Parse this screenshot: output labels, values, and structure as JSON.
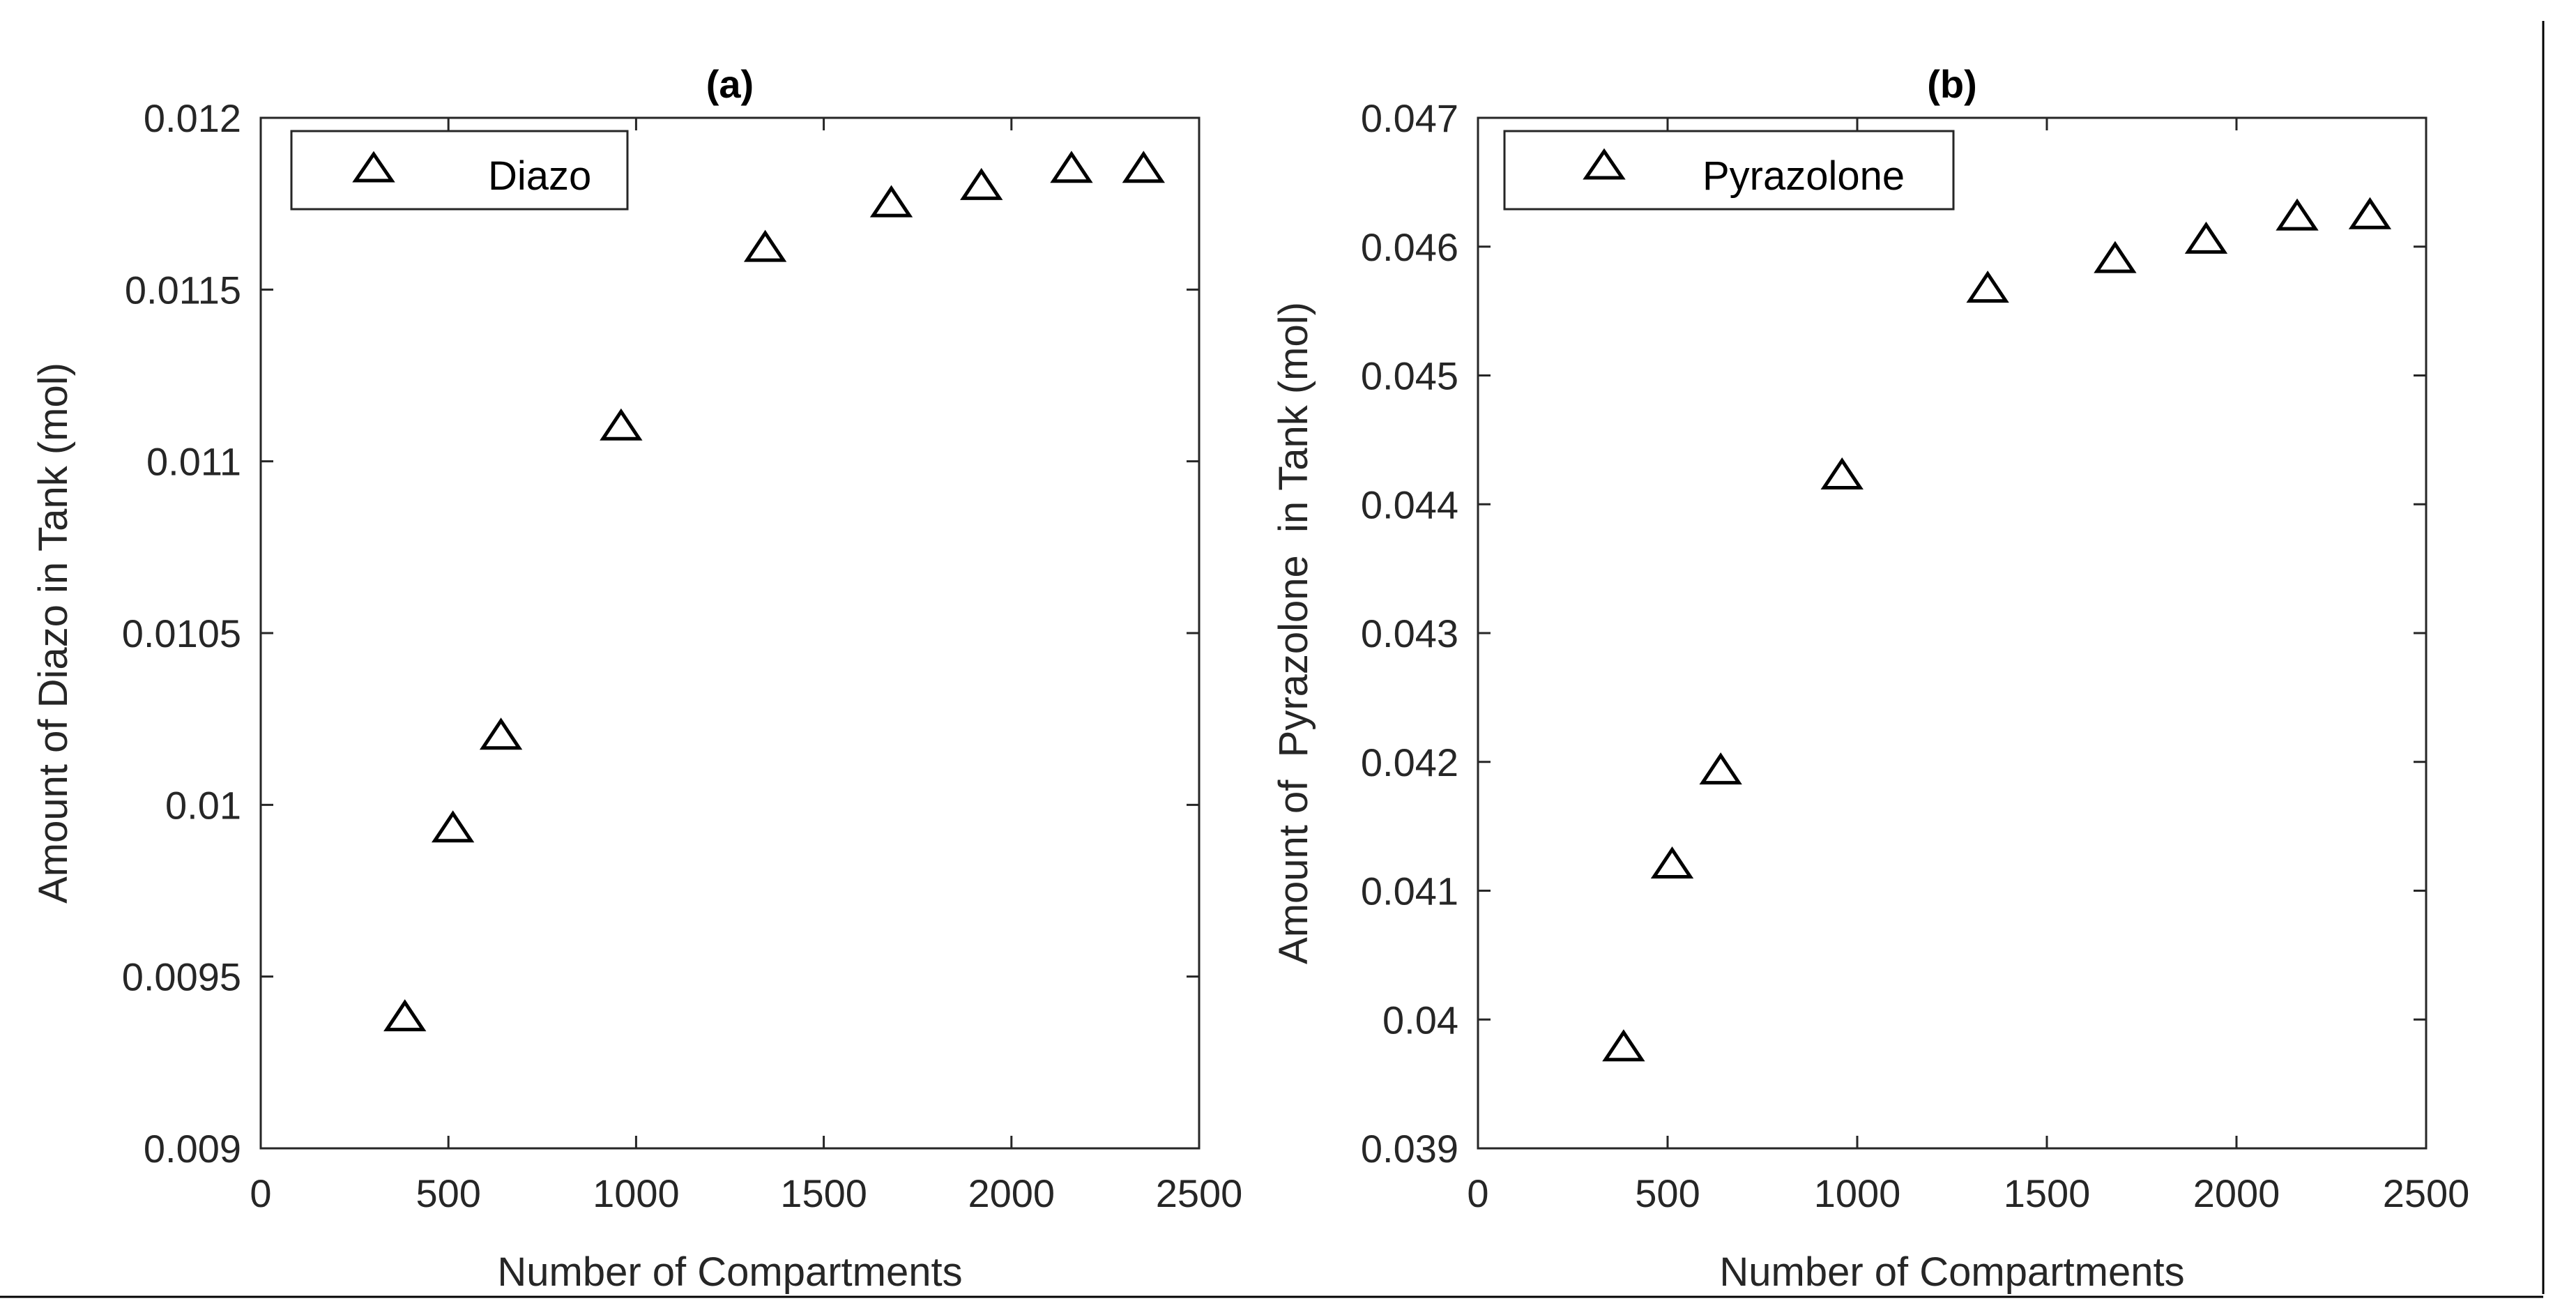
{
  "chart_data": [
    {
      "type": "scatter",
      "title": "(a)",
      "xlabel": "Number of Compartments",
      "ylabel": "Amount of Diazo in Tank (mol)",
      "xlim": [
        0,
        2500
      ],
      "ylim": [
        0.009,
        0.012
      ],
      "xticks": [
        0,
        500,
        1000,
        1500,
        2000,
        2500
      ],
      "xtick_labels": [
        "0",
        "500",
        "1000",
        "1500",
        "2000",
        "2500"
      ],
      "yticks": [
        0.009,
        0.0095,
        0.01,
        0.0105,
        0.011,
        0.0115,
        0.012
      ],
      "ytick_labels": [
        "0.009",
        "0.0095",
        "0.01",
        "0.0105",
        "0.011",
        "0.0115",
        "0.012"
      ],
      "grid": false,
      "legend_position": "top-left",
      "series": [
        {
          "name": "Diazo",
          "marker": "triangle",
          "x": [
            384,
            512,
            640,
            960,
            1344,
            1680,
            1920,
            2160,
            2352
          ],
          "y": [
            0.00938,
            0.00993,
            0.0102,
            0.0111,
            0.01162,
            0.01175,
            0.0118,
            0.01185,
            0.01185
          ]
        }
      ]
    },
    {
      "type": "scatter",
      "title": "(b)",
      "xlabel": "Number of Compartments",
      "ylabel": "Amount of  Pyrazolone  in Tank (mol)",
      "xlim": [
        0,
        2500
      ],
      "ylim": [
        0.039,
        0.047
      ],
      "xticks": [
        0,
        500,
        1000,
        1500,
        2000,
        2500
      ],
      "xtick_labels": [
        "0",
        "500",
        "1000",
        "1500",
        "2000",
        "2500"
      ],
      "yticks": [
        0.039,
        0.04,
        0.041,
        0.042,
        0.043,
        0.044,
        0.045,
        0.046,
        0.047
      ],
      "ytick_labels": [
        "0.039",
        "0.04",
        "0.041",
        "0.042",
        "0.043",
        "0.044",
        "0.045",
        "0.046",
        "0.047"
      ],
      "grid": false,
      "legend_position": "top-left",
      "series": [
        {
          "name": "Pyrazolone",
          "marker": "triangle",
          "x": [
            384,
            512,
            640,
            960,
            1344,
            1680,
            1920,
            2160,
            2352
          ],
          "y": [
            0.03978,
            0.0412,
            0.04193,
            0.04422,
            0.04567,
            0.0459,
            0.04605,
            0.04623,
            0.04624
          ]
        }
      ]
    }
  ]
}
